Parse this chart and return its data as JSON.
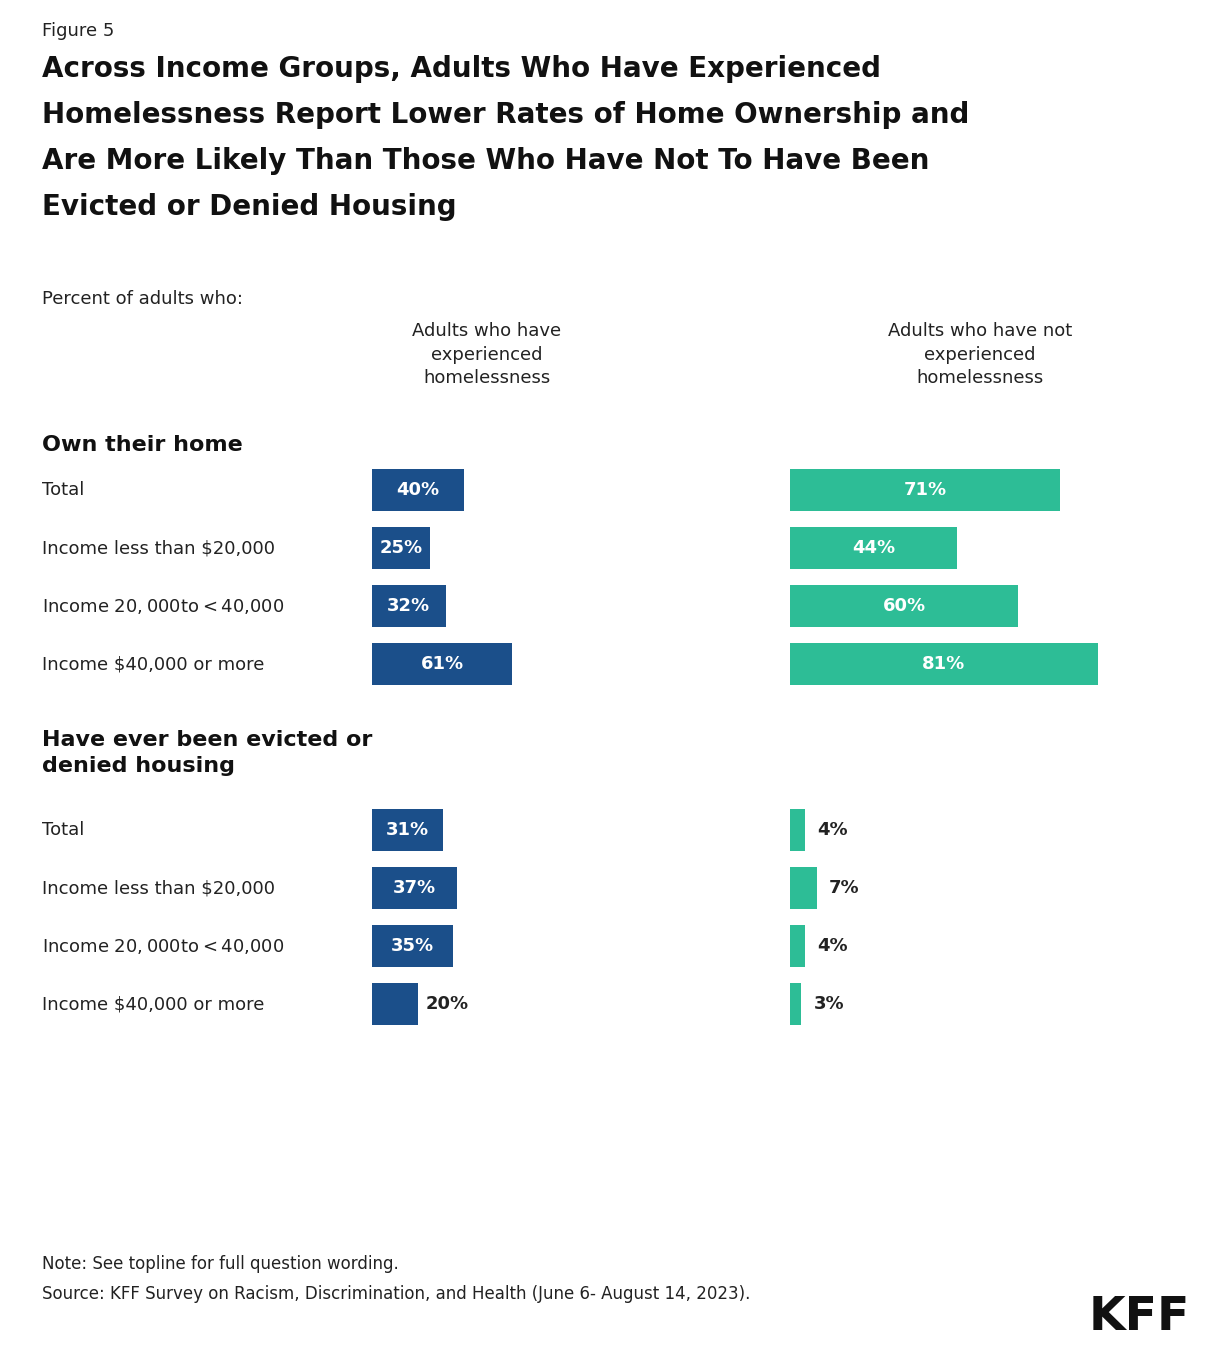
{
  "figure_label": "Figure 5",
  "title_line1": "Across Income Groups, Adults Who Have Experienced",
  "title_line2": "Homelessness Report Lower Rates of Home Ownership and",
  "title_line3": "Are More Likely Than Those Who Have Not To Have Been",
  "title_line4": "Evicted or Denied Housing",
  "subtitle": "Percent of adults who:",
  "col1_header": "Adults who have\nexperienced\nhomelessness",
  "col2_header": "Adults who have not\nexperienced\nhomelessness",
  "section1_title": "Own their home",
  "section2_title": "Have ever been evicted or\ndenied housing",
  "categories": [
    "Total",
    "Income less than $20,000",
    "Income $20,000 to <$40,000",
    "Income $40,000 or more"
  ],
  "section1_col1": [
    40,
    25,
    32,
    61
  ],
  "section1_col2": [
    71,
    44,
    60,
    81
  ],
  "section2_col1": [
    31,
    37,
    35,
    20
  ],
  "section2_col2": [
    4,
    7,
    4,
    3
  ],
  "col1_color": "#1B4F8A",
  "col2_color": "#2DBD96",
  "note": "Note: See topline for full question wording.",
  "source": "Source: KFF Survey on Racism, Discrimination, and Health (June 6- August 14, 2023).",
  "bg_color": "#FFFFFF",
  "text_color": "#222222",
  "bar_max_val": 100
}
